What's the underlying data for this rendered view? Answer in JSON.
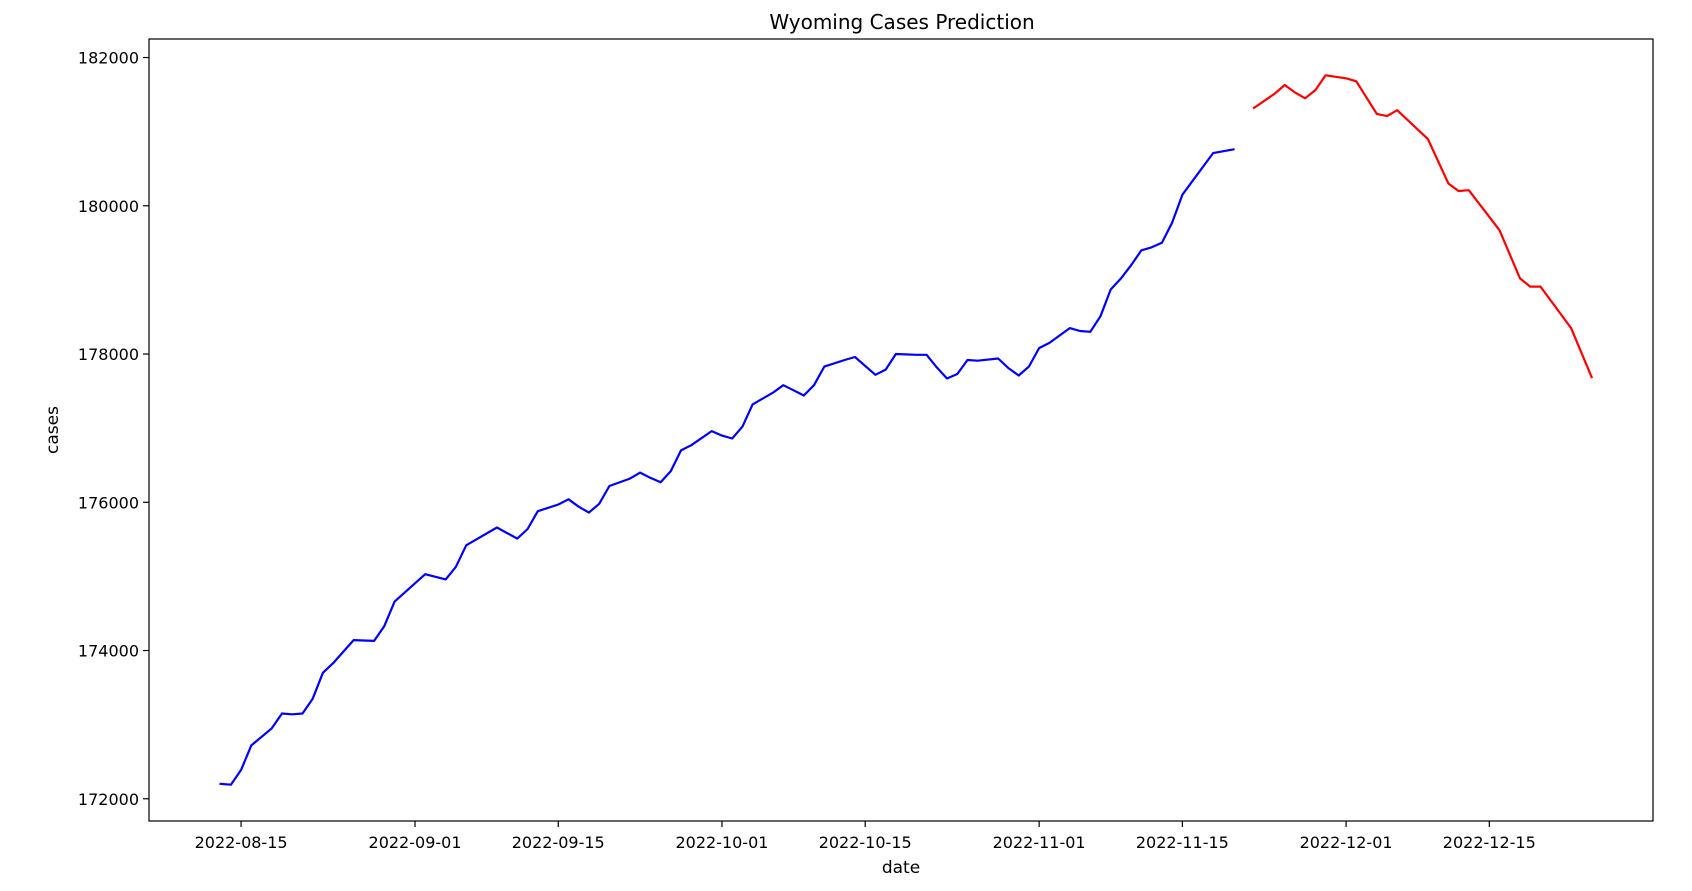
{
  "chart_data": {
    "type": "line",
    "title": "Wyoming Cases Prediction",
    "xlabel": "date",
    "ylabel": "cases",
    "xlim": [
      "2022-08-06",
      "2022-12-31"
    ],
    "ylim": [
      171700,
      182250
    ],
    "grid": false,
    "x_ticks": [
      "2022-08-15",
      "2022-09-01",
      "2022-09-15",
      "2022-10-01",
      "2022-10-15",
      "2022-11-01",
      "2022-11-15",
      "2022-12-01",
      "2022-12-15"
    ],
    "y_ticks": [
      172000,
      174000,
      176000,
      178000,
      180000,
      182000
    ],
    "series": [
      {
        "color": "#0000ff",
        "points": [
          [
            "2022-08-13",
            172200
          ],
          [
            "2022-08-14",
            172190
          ],
          [
            "2022-08-15",
            172390
          ],
          [
            "2022-08-16",
            172720
          ],
          [
            "2022-08-18",
            172950
          ],
          [
            "2022-08-19",
            173150
          ],
          [
            "2022-08-20",
            173140
          ],
          [
            "2022-08-21",
            173150
          ],
          [
            "2022-08-22",
            173350
          ],
          [
            "2022-08-23",
            173700
          ],
          [
            "2022-08-24",
            173830
          ],
          [
            "2022-08-26",
            174140
          ],
          [
            "2022-08-28",
            174130
          ],
          [
            "2022-08-29",
            174330
          ],
          [
            "2022-08-30",
            174660
          ],
          [
            "2022-09-02",
            175030
          ],
          [
            "2022-09-04",
            174960
          ],
          [
            "2022-09-05",
            175130
          ],
          [
            "2022-09-06",
            175420
          ],
          [
            "2022-09-09",
            175660
          ],
          [
            "2022-09-11",
            175510
          ],
          [
            "2022-09-12",
            175640
          ],
          [
            "2022-09-13",
            175880
          ],
          [
            "2022-09-15",
            175970
          ],
          [
            "2022-09-16",
            176040
          ],
          [
            "2022-09-17",
            175940
          ],
          [
            "2022-09-18",
            175860
          ],
          [
            "2022-09-19",
            175980
          ],
          [
            "2022-09-20",
            176220
          ],
          [
            "2022-09-22",
            176320
          ],
          [
            "2022-09-23",
            176400
          ],
          [
            "2022-09-24",
            176330
          ],
          [
            "2022-09-25",
            176270
          ],
          [
            "2022-09-26",
            176420
          ],
          [
            "2022-09-27",
            176700
          ],
          [
            "2022-09-28",
            176770
          ],
          [
            "2022-09-30",
            176960
          ],
          [
            "2022-10-01",
            176900
          ],
          [
            "2022-10-02",
            176860
          ],
          [
            "2022-10-03",
            177020
          ],
          [
            "2022-10-04",
            177320
          ],
          [
            "2022-10-06",
            177480
          ],
          [
            "2022-10-07",
            177580
          ],
          [
            "2022-10-08",
            177510
          ],
          [
            "2022-10-09",
            177440
          ],
          [
            "2022-10-10",
            177580
          ],
          [
            "2022-10-11",
            177830
          ],
          [
            "2022-10-13",
            177920
          ],
          [
            "2022-10-14",
            177960
          ],
          [
            "2022-10-15",
            177840
          ],
          [
            "2022-10-16",
            177720
          ],
          [
            "2022-10-17",
            177790
          ],
          [
            "2022-10-18",
            178000
          ],
          [
            "2022-10-20",
            177990
          ],
          [
            "2022-10-21",
            177990
          ],
          [
            "2022-10-22",
            177820
          ],
          [
            "2022-10-23",
            177670
          ],
          [
            "2022-10-24",
            177730
          ],
          [
            "2022-10-25",
            177920
          ],
          [
            "2022-10-26",
            177910
          ],
          [
            "2022-10-28",
            177940
          ],
          [
            "2022-10-29",
            177810
          ],
          [
            "2022-10-30",
            177710
          ],
          [
            "2022-10-31",
            177830
          ],
          [
            "2022-11-01",
            178080
          ],
          [
            "2022-11-02",
            178150
          ],
          [
            "2022-11-04",
            178350
          ],
          [
            "2022-11-05",
            178310
          ],
          [
            "2022-11-06",
            178300
          ],
          [
            "2022-11-07",
            178510
          ],
          [
            "2022-11-08",
            178870
          ],
          [
            "2022-11-09",
            179020
          ],
          [
            "2022-11-10",
            179200
          ],
          [
            "2022-11-11",
            179400
          ],
          [
            "2022-11-12",
            179440
          ],
          [
            "2022-11-13",
            179500
          ],
          [
            "2022-11-14",
            179770
          ],
          [
            "2022-11-15",
            180150
          ],
          [
            "2022-11-18",
            180710
          ],
          [
            "2022-11-20",
            180760
          ]
        ]
      },
      {
        "color": "#ff0000",
        "points": [
          [
            "2022-11-22",
            181320
          ],
          [
            "2022-11-24",
            181510
          ],
          [
            "2022-11-25",
            181630
          ],
          [
            "2022-11-26",
            181530
          ],
          [
            "2022-11-27",
            181450
          ],
          [
            "2022-11-28",
            181560
          ],
          [
            "2022-11-29",
            181760
          ],
          [
            "2022-12-01",
            181720
          ],
          [
            "2022-12-02",
            181680
          ],
          [
            "2022-12-03",
            181460
          ],
          [
            "2022-12-04",
            181240
          ],
          [
            "2022-12-05",
            181210
          ],
          [
            "2022-12-06",
            181290
          ],
          [
            "2022-12-09",
            180900
          ],
          [
            "2022-12-11",
            180300
          ],
          [
            "2022-12-12",
            180200
          ],
          [
            "2022-12-13",
            180210
          ],
          [
            "2022-12-16",
            179670
          ],
          [
            "2022-12-18",
            179020
          ],
          [
            "2022-12-19",
            178910
          ],
          [
            "2022-12-20",
            178910
          ],
          [
            "2022-12-23",
            178350
          ],
          [
            "2022-12-25",
            177690
          ]
        ]
      }
    ]
  }
}
